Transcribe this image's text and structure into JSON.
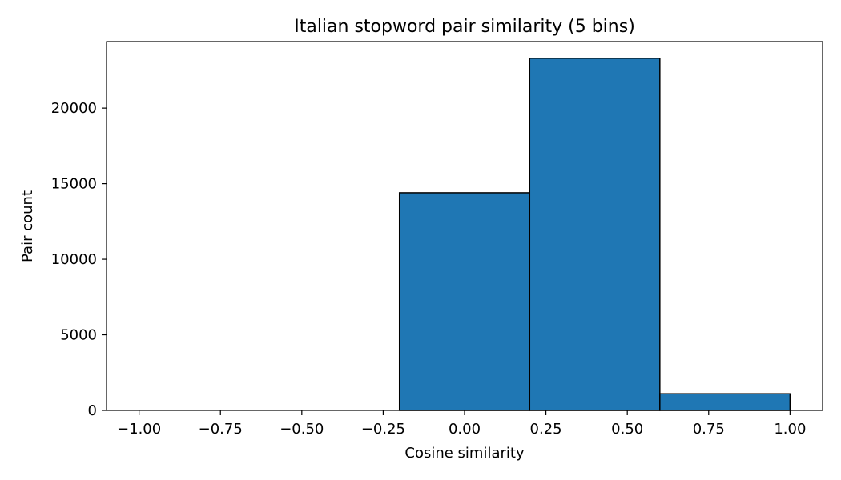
{
  "chart_data": {
    "type": "bar",
    "title": "Italian stopword pair similarity (5 bins)",
    "xlabel": "Cosine similarity",
    "ylabel": "Pair count",
    "bins": [
      {
        "x0": -1.0,
        "x1": -0.6,
        "count": 0
      },
      {
        "x0": -0.6,
        "x1": -0.2,
        "count": 0
      },
      {
        "x0": -0.2,
        "x1": 0.2,
        "count": 14400
      },
      {
        "x0": 0.2,
        "x1": 0.6,
        "count": 23300
      },
      {
        "x0": 0.6,
        "x1": 1.0,
        "count": 1100
      }
    ],
    "xlim": [
      -1.1,
      1.1
    ],
    "ylim": [
      0,
      24400
    ],
    "xticks": [
      -1.0,
      -0.75,
      -0.5,
      -0.25,
      0.0,
      0.25,
      0.5,
      0.75,
      1.0
    ],
    "xtick_labels": [
      "−1.00",
      "−0.75",
      "−0.50",
      "−0.25",
      "0.00",
      "0.25",
      "0.50",
      "0.75",
      "1.00"
    ],
    "yticks": [
      0,
      5000,
      10000,
      15000,
      20000
    ],
    "ytick_labels": [
      "0",
      "5000",
      "10000",
      "15000",
      "20000"
    ],
    "bar_color": "#1f77b4",
    "edge_color": "#000000",
    "grid": false,
    "legend": "none"
  }
}
